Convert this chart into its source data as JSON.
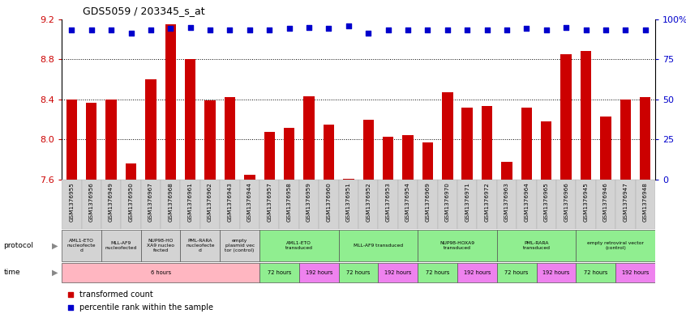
{
  "title": "GDS5059 / 203345_s_at",
  "samples": [
    "GSM1376955",
    "GSM1376956",
    "GSM1376949",
    "GSM1376950",
    "GSM1376967",
    "GSM1376968",
    "GSM1376961",
    "GSM1376962",
    "GSM1376943",
    "GSM1376944",
    "GSM1376957",
    "GSM1376958",
    "GSM1376959",
    "GSM1376960",
    "GSM1376951",
    "GSM1376952",
    "GSM1376953",
    "GSM1376954",
    "GSM1376969",
    "GSM1376970",
    "GSM1376971",
    "GSM1376972",
    "GSM1376963",
    "GSM1376964",
    "GSM1376965",
    "GSM1376966",
    "GSM1376945",
    "GSM1376946",
    "GSM1376947",
    "GSM1376948"
  ],
  "bar_values": [
    8.4,
    8.37,
    8.4,
    7.76,
    8.6,
    9.15,
    8.8,
    8.39,
    8.42,
    7.65,
    8.08,
    8.12,
    8.43,
    8.15,
    7.61,
    8.2,
    8.03,
    8.04,
    7.97,
    8.47,
    8.32,
    8.33,
    7.78,
    8.32,
    8.18,
    8.85,
    8.88,
    8.23,
    8.4,
    8.42
  ],
  "percentile_values": [
    93,
    93,
    93,
    91,
    93,
    94,
    95,
    93,
    93,
    93,
    93,
    94,
    95,
    94,
    96,
    91,
    93,
    93,
    93,
    93,
    93,
    93,
    93,
    94,
    93,
    95,
    93,
    93,
    93,
    93
  ],
  "ylim_left": [
    7.6,
    9.2
  ],
  "ylim_right": [
    0,
    100
  ],
  "yticks_left": [
    7.6,
    8.0,
    8.4,
    8.8,
    9.2
  ],
  "yticks_right": [
    0,
    25,
    50,
    75,
    100
  ],
  "bar_color": "#cc0000",
  "dot_color": "#0000cc",
  "background_color": "#ffffff",
  "xtick_bg_color": "#d3d3d3",
  "protocol_groups": [
    {
      "label": "AML1-ETO\nnucleofecte\nd",
      "start": 0,
      "end": 2,
      "color": "#d3d3d3"
    },
    {
      "label": "MLL-AF9\nnucleofected",
      "start": 2,
      "end": 4,
      "color": "#d3d3d3"
    },
    {
      "label": "NUP98-HO\nXA9 nucleo\nfected",
      "start": 4,
      "end": 6,
      "color": "#d3d3d3"
    },
    {
      "label": "PML-RARA\nnucleofecte\nd",
      "start": 6,
      "end": 8,
      "color": "#d3d3d3"
    },
    {
      "label": "empty\nplasmid vec\ntor (control)",
      "start": 8,
      "end": 10,
      "color": "#d3d3d3"
    },
    {
      "label": "AML1-ETO\ntransduced",
      "start": 10,
      "end": 14,
      "color": "#90ee90"
    },
    {
      "label": "MLL-AF9 transduced",
      "start": 14,
      "end": 18,
      "color": "#90ee90"
    },
    {
      "label": "NUP98-HOXA9\ntransduced",
      "start": 18,
      "end": 22,
      "color": "#90ee90"
    },
    {
      "label": "PML-RARA\ntransduced",
      "start": 22,
      "end": 26,
      "color": "#90ee90"
    },
    {
      "label": "empty retroviral vector\n(control)",
      "start": 26,
      "end": 30,
      "color": "#90ee90"
    }
  ],
  "time_groups": [
    {
      "label": "6 hours",
      "start": 0,
      "end": 10,
      "color": "#ffb6c1"
    },
    {
      "label": "72 hours",
      "start": 10,
      "end": 12,
      "color": "#90ee90"
    },
    {
      "label": "192 hours",
      "start": 12,
      "end": 14,
      "color": "#ee82ee"
    },
    {
      "label": "72 hours",
      "start": 14,
      "end": 16,
      "color": "#90ee90"
    },
    {
      "label": "192 hours",
      "start": 16,
      "end": 18,
      "color": "#ee82ee"
    },
    {
      "label": "72 hours",
      "start": 18,
      "end": 20,
      "color": "#90ee90"
    },
    {
      "label": "192 hours",
      "start": 20,
      "end": 22,
      "color": "#ee82ee"
    },
    {
      "label": "72 hours",
      "start": 22,
      "end": 24,
      "color": "#90ee90"
    },
    {
      "label": "192 hours",
      "start": 24,
      "end": 26,
      "color": "#ee82ee"
    },
    {
      "label": "72 hours",
      "start": 26,
      "end": 28,
      "color": "#90ee90"
    },
    {
      "label": "192 hours",
      "start": 28,
      "end": 30,
      "color": "#ee82ee"
    }
  ],
  "legend_bar_label": "transformed count",
  "legend_dot_label": "percentile rank within the sample",
  "right_ytick_labels": [
    "0",
    "25",
    "50",
    "75",
    "100%"
  ]
}
